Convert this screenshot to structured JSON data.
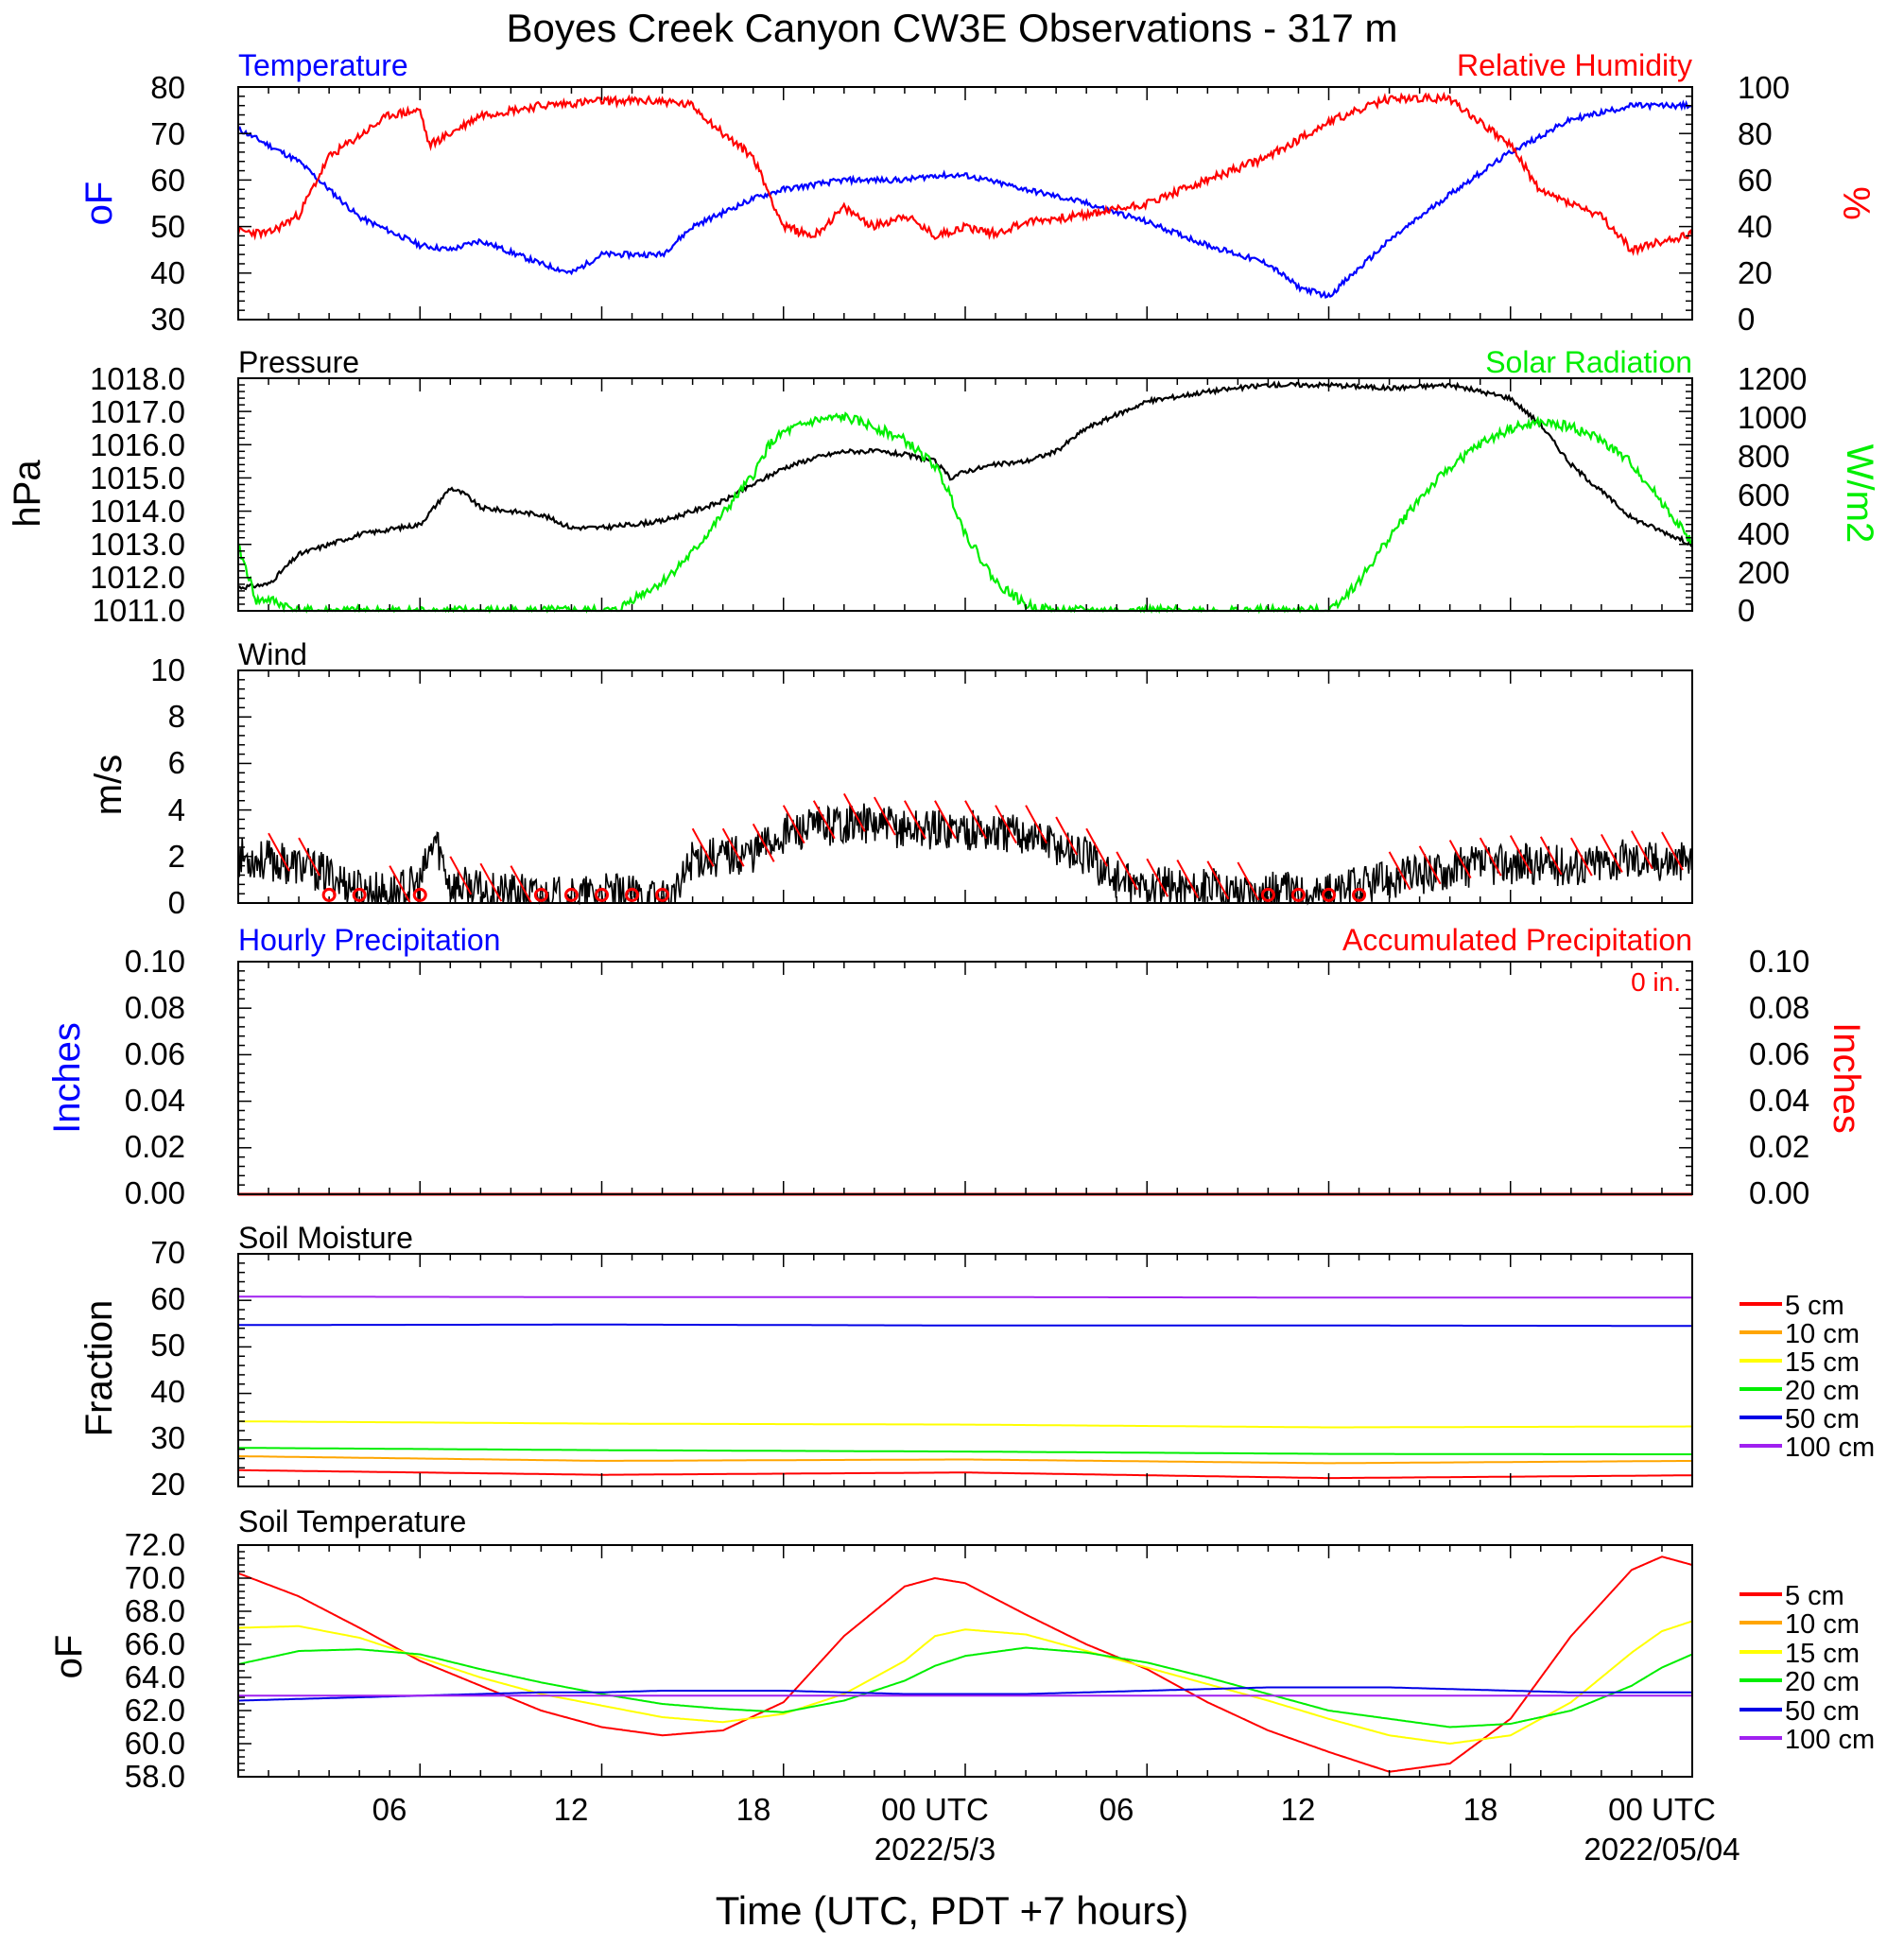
{
  "title": "Boyes Creek Canyon CW3E Observations - 317 m",
  "colors": {
    "blue": "#0000ff",
    "red": "#ff0000",
    "green": "#00ee00",
    "black": "#000000",
    "orange": "#ffa500",
    "yellow": "#ffff00",
    "purple": "#a020f0",
    "darkblue": "#0000e6"
  },
  "time_axis": {
    "range_hours": [
      0,
      48
    ],
    "tick_hours": [
      6,
      12,
      18,
      24,
      30,
      36,
      42,
      48
    ],
    "tick_labels": [
      "06",
      "12",
      "18",
      "00 UTC",
      "06",
      "12",
      "18",
      "00 UTC"
    ],
    "date_labels": [
      {
        "hour": 24,
        "text": "2022/5/3"
      },
      {
        "hour": 48,
        "text": "2022/05/04"
      }
    ],
    "xlabel": "Time (UTC, PDT +7 hours)"
  },
  "panels": {
    "temp_rh": {
      "left_title": "Temperature",
      "right_title": "Relative Humidity",
      "left_ylabel": "oF",
      "right_ylabel": "%",
      "left_ticks": [
        "80",
        "70",
        "60",
        "50",
        "40",
        "30"
      ],
      "right_ticks": [
        "100",
        "80",
        "60",
        "40",
        "20",
        "0"
      ]
    },
    "pressure_solar": {
      "left_title": "Pressure",
      "right_title": "Solar Radiation",
      "left_ylabel": "hPa",
      "right_ylabel": "W/m2",
      "left_ticks": [
        "1018.0",
        "1017.0",
        "1016.0",
        "1015.0",
        "1014.0",
        "1013.0",
        "1012.0",
        "1011.0"
      ],
      "right_ticks": [
        "1200",
        "1000",
        "800",
        "600",
        "400",
        "200",
        "0"
      ]
    },
    "wind": {
      "left_title": "Wind",
      "left_ylabel": "m/s",
      "left_ticks": [
        "10",
        "8",
        "6",
        "4",
        "2",
        "0"
      ]
    },
    "precip": {
      "left_title": "Hourly Precipitation",
      "right_title": "Accumulated Precipitation",
      "accum_label": "0 in.",
      "left_ylabel": "Inches",
      "right_ylabel": "Inches",
      "left_ticks": [
        "0.10",
        "0.08",
        "0.06",
        "0.04",
        "0.02",
        "0.00"
      ],
      "right_ticks": [
        "0.10",
        "0.08",
        "0.06",
        "0.04",
        "0.02",
        "0.00"
      ]
    },
    "soil_moisture": {
      "left_title": "Soil Moisture",
      "left_ylabel": "Fraction",
      "left_ticks": [
        "70",
        "60",
        "50",
        "40",
        "30",
        "20"
      ],
      "legend": [
        "5 cm",
        "10 cm",
        "15 cm",
        "20 cm",
        "50 cm",
        "100 cm"
      ]
    },
    "soil_temp": {
      "left_title": "Soil Temperature",
      "left_ylabel": "oF",
      "left_ticks": [
        "72.0",
        "70.0",
        "68.0",
        "66.0",
        "64.0",
        "62.0",
        "60.0",
        "58.0"
      ],
      "legend": [
        "5 cm",
        "10 cm",
        "15 cm",
        "20 cm",
        "50 cm",
        "100 cm"
      ]
    }
  },
  "chart_data": [
    {
      "type": "line",
      "title": "Temperature",
      "ylabel": "oF",
      "ylim": [
        30,
        80
      ],
      "x_hours": [
        0,
        2,
        4,
        6,
        7,
        8,
        10,
        11,
        12,
        14,
        15,
        17,
        18,
        20,
        22,
        23,
        24,
        26,
        28,
        30,
        32,
        34,
        35,
        36,
        38,
        40,
        42,
        44,
        46,
        48
      ],
      "series": [
        {
          "name": "Temperature",
          "values": [
            71,
            64,
            52,
            46,
            45,
            47,
            42,
            40,
            44,
            44,
            50,
            56,
            58,
            60,
            60,
            61,
            61,
            58,
            55,
            51,
            46,
            42,
            37,
            35,
            47,
            57,
            66,
            73,
            76,
            76
          ]
        }
      ]
    },
    {
      "type": "line",
      "title": "Relative Humidity",
      "ylabel": "%",
      "ylim": [
        0,
        100
      ],
      "x_hours": [
        0,
        1,
        2,
        3,
        5,
        6,
        6.3,
        7,
        8,
        10,
        12,
        14,
        15,
        16,
        17,
        17.5,
        18,
        19,
        20,
        21,
        22,
        23,
        24,
        25,
        26,
        28,
        30,
        32,
        34,
        36,
        37,
        38,
        40,
        42,
        43,
        44,
        45,
        46,
        48
      ],
      "series": [
        {
          "name": "Relative Humidity",
          "values": [
            38,
            37,
            45,
            70,
            88,
            90,
            75,
            80,
            88,
            92,
            94,
            94,
            92,
            80,
            70,
            55,
            40,
            36,
            48,
            40,
            45,
            36,
            40,
            37,
            42,
            45,
            50,
            60,
            70,
            85,
            90,
            95,
            95,
            75,
            55,
            50,
            44,
            30,
            37
          ]
        }
      ]
    },
    {
      "type": "line",
      "title": "Pressure",
      "ylabel": "hPa",
      "ylim": [
        1011,
        1018
      ],
      "x_hours": [
        0,
        1,
        2,
        4,
        6,
        7,
        7.5,
        8,
        10,
        11,
        12,
        14,
        15,
        16,
        18,
        19,
        20,
        21,
        22,
        23,
        23.5,
        24,
        25,
        26,
        27,
        28,
        30,
        32,
        34,
        36,
        38,
        40,
        42,
        43,
        44,
        46,
        48
      ],
      "series": [
        {
          "name": "Pressure",
          "values": [
            1011.7,
            1011.8,
            1012.7,
            1013.3,
            1013.6,
            1014.7,
            1014.5,
            1014.1,
            1013.9,
            1013.5,
            1013.5,
            1013.7,
            1014.0,
            1014.3,
            1015.3,
            1015.6,
            1015.8,
            1015.8,
            1015.7,
            1015.5,
            1015.0,
            1015.2,
            1015.4,
            1015.5,
            1015.8,
            1016.5,
            1017.3,
            1017.6,
            1017.8,
            1017.8,
            1017.7,
            1017.8,
            1017.4,
            1016.6,
            1015.4,
            1013.8,
            1013.0
          ]
        }
      ]
    },
    {
      "type": "line",
      "title": "Solar Radiation",
      "ylabel": "W/m2",
      "ylim": [
        0,
        1200
      ],
      "x_hours": [
        0,
        0.3,
        0.6,
        1,
        1.5,
        2,
        12.5,
        13,
        14,
        15,
        16,
        17,
        17.5,
        18,
        19,
        20,
        21,
        22,
        23,
        23.5,
        24,
        25,
        26,
        27,
        36,
        37,
        38,
        39,
        40,
        41,
        42,
        43,
        44,
        45,
        46,
        47,
        48
      ],
      "series": [
        {
          "name": "Solar Radiation",
          "values": [
            330,
            200,
            50,
            60,
            30,
            0,
            0,
            60,
            150,
            300,
            500,
            700,
            850,
            920,
            980,
            1000,
            950,
            880,
            750,
            600,
            400,
            150,
            30,
            0,
            0,
            150,
            380,
            580,
            740,
            860,
            940,
            970,
            950,
            880,
            760,
            560,
            350
          ]
        }
      ]
    },
    {
      "type": "line",
      "title": "Wind",
      "ylabel": "m/s",
      "ylim": [
        0,
        10
      ],
      "x_hours": [
        0,
        2,
        3,
        4,
        5,
        6,
        6.5,
        7,
        8,
        10,
        11,
        12,
        13,
        14,
        14.5,
        15,
        16,
        17,
        18,
        19,
        20,
        22,
        24,
        25,
        26,
        27,
        28,
        29,
        29.5,
        30,
        32,
        34,
        36,
        38,
        40,
        42,
        44,
        46,
        48
      ],
      "series": [
        {
          "name": "Wind speed",
          "values": [
            2,
            1.6,
            1.2,
            0.6,
            0.4,
            0.8,
            2.8,
            0.8,
            0.5,
            0.3,
            0.2,
            0.4,
            0.3,
            0.2,
            0.4,
            2,
            2,
            2.2,
            3,
            3.2,
            3.5,
            3.2,
            3.2,
            3,
            3,
            2.5,
            2,
            1,
            0.7,
            0.7,
            0.6,
            0.5,
            0.4,
            1,
            1.5,
            1.7,
            1.6,
            1.9,
            1.8
          ]
        }
      ]
    },
    {
      "type": "line",
      "title": "Hourly Precipitation",
      "ylabel": "Inches",
      "ylim": [
        0,
        0.1
      ],
      "x_hours": [
        0,
        48
      ],
      "series": [
        {
          "name": "Hourly Precipitation",
          "values": [
            0,
            0
          ]
        },
        {
          "name": "Accumulated Precipitation",
          "values": [
            0,
            0
          ]
        }
      ]
    },
    {
      "type": "line",
      "title": "Soil Moisture",
      "ylabel": "Fraction",
      "ylim": [
        20,
        70
      ],
      "x_hours": [
        0,
        12,
        24,
        36,
        48
      ],
      "series": [
        {
          "name": "5 cm",
          "values": [
            23.5,
            22.5,
            23.0,
            21.8,
            22.4
          ]
        },
        {
          "name": "10 cm",
          "values": [
            26.5,
            25.5,
            25.8,
            25.0,
            25.5
          ]
        },
        {
          "name": "15 cm",
          "values": [
            34.0,
            33.5,
            33.3,
            32.7,
            32.9
          ]
        },
        {
          "name": "20 cm",
          "values": [
            28.3,
            27.8,
            27.5,
            27.0,
            26.9
          ]
        },
        {
          "name": "50 cm",
          "values": [
            54.7,
            54.8,
            54.6,
            54.6,
            54.5
          ]
        },
        {
          "name": "100 cm",
          "values": [
            60.8,
            60.7,
            60.7,
            60.6,
            60.6
          ]
        }
      ]
    },
    {
      "type": "line",
      "title": "Soil Temperature",
      "ylabel": "oF",
      "ylim": [
        58,
        72
      ],
      "x_hours": [
        0,
        2,
        4,
        6,
        8,
        10,
        12,
        14,
        16,
        18,
        20,
        22,
        23,
        24,
        26,
        28,
        30,
        32,
        34,
        36,
        38,
        40,
        42,
        44,
        46,
        47,
        48
      ],
      "series": [
        {
          "name": "5 cm",
          "values": [
            70.3,
            68.9,
            67.0,
            65.0,
            63.5,
            62.0,
            61.0,
            60.5,
            60.8,
            62.5,
            66.5,
            69.5,
            70.0,
            69.7,
            67.8,
            66.0,
            64.5,
            62.5,
            60.8,
            59.5,
            58.3,
            58.8,
            61.5,
            66.5,
            70.5,
            71.3,
            70.8
          ]
        },
        {
          "name": "15 cm",
          "values": [
            67.0,
            67.1,
            66.4,
            65.2,
            64.0,
            63.0,
            62.3,
            61.6,
            61.3,
            61.8,
            63.0,
            65.0,
            66.5,
            66.9,
            66.6,
            65.6,
            64.6,
            63.6,
            62.6,
            61.5,
            60.5,
            60.0,
            60.5,
            62.5,
            65.5,
            66.8,
            67.4
          ]
        },
        {
          "name": "20 cm",
          "values": [
            64.8,
            65.6,
            65.7,
            65.4,
            64.5,
            63.7,
            63.0,
            62.4,
            62.1,
            61.9,
            62.6,
            63.8,
            64.7,
            65.3,
            65.8,
            65.5,
            64.9,
            64.0,
            63.0,
            62.0,
            61.5,
            61.0,
            61.2,
            62.0,
            63.5,
            64.6,
            65.4
          ]
        },
        {
          "name": "50 cm",
          "values": [
            62.6,
            62.7,
            62.8,
            62.9,
            63.0,
            63.1,
            63.1,
            63.2,
            63.2,
            63.2,
            63.1,
            63.0,
            63.0,
            63.0,
            63.0,
            63.1,
            63.2,
            63.3,
            63.4,
            63.4,
            63.4,
            63.3,
            63.2,
            63.1,
            63.1,
            63.1,
            63.1
          ]
        },
        {
          "name": "100 cm",
          "values": [
            62.9,
            62.9,
            62.9,
            62.9,
            62.9,
            62.9,
            62.9,
            62.9,
            62.9,
            62.9,
            62.9,
            62.9,
            62.9,
            62.9,
            62.9,
            62.9,
            62.9,
            62.9,
            62.9,
            62.9,
            62.9,
            62.9,
            62.9,
            62.9,
            62.9,
            62.9,
            62.9
          ]
        }
      ]
    }
  ]
}
